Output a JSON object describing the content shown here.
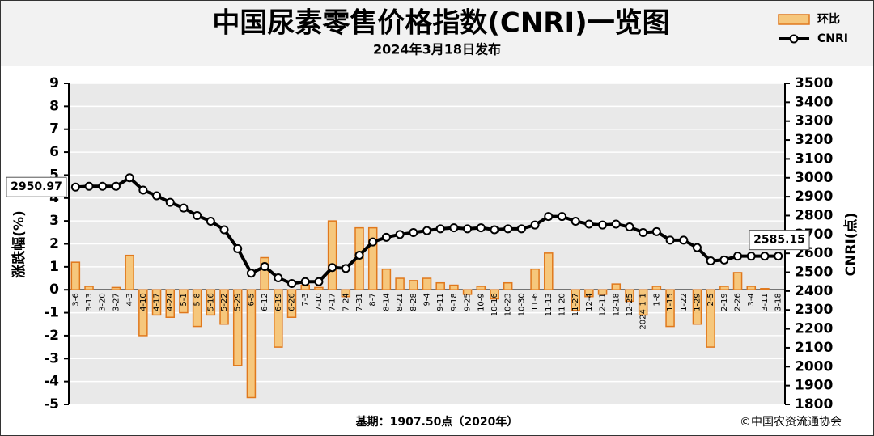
{
  "chart_data": {
    "type": "combo",
    "title": "中国尿素零售价格指数(CNRI)一览图",
    "subtitle": "2024年3月18日发布",
    "y_label": "涨跌幅(%)",
    "y2_label": "CNRI(点)",
    "footnote": "基期：1907.50点（2020年）",
    "source": "©中国农资流通协会",
    "legend_position": "top-right",
    "grid": true,
    "categories": [
      "3-6",
      "3-13",
      "3-20",
      "3-27",
      "4-3",
      "4-10",
      "4-17",
      "4-24",
      "5-1",
      "5-8",
      "5-16",
      "5-22",
      "5-29",
      "6-5",
      "6-12",
      "6-19",
      "6-26",
      "7-3",
      "7-10",
      "7-17",
      "7-24",
      "7-31",
      "8-7",
      "8-14",
      "8-21",
      "8-28",
      "9-4",
      "9-11",
      "9-18",
      "9-25",
      "10-9",
      "10-16",
      "10-23",
      "10-30",
      "11-6",
      "11-13",
      "11-20",
      "11-27",
      "12-4",
      "12-11",
      "12-18",
      "12-25",
      "2024-1-1",
      "1-8",
      "1-15",
      "1-22",
      "1-29",
      "2-5",
      "2-19",
      "2-26",
      "3-4",
      "3-11",
      "3-18"
    ],
    "series": [
      {
        "name": "环比",
        "type": "bar",
        "axis": "y",
        "color": "#f6c77c",
        "edge": "#e0781c",
        "values": [
          1.2,
          0.15,
          0,
          0.1,
          1.5,
          -2.0,
          -1.1,
          -1.2,
          -1.0,
          -1.6,
          -1.1,
          -1.5,
          -3.3,
          -4.7,
          1.4,
          -2.5,
          -1.2,
          0.2,
          0.1,
          3.0,
          -0.3,
          2.7,
          2.7,
          0.9,
          0.5,
          0.4,
          0.5,
          0.3,
          0.2,
          -0.2,
          0.15,
          -0.4,
          0.3,
          0,
          0.9,
          1.6,
          0,
          -0.9,
          -0.3,
          -0.2,
          0.25,
          -0.5,
          -1.1,
          0.15,
          -1.6,
          0,
          -1.5,
          -2.5,
          0.15,
          0.75,
          0.15,
          0.05,
          0
        ]
      },
      {
        "name": "CNRI",
        "type": "line",
        "axis": "y2",
        "color": "#000000",
        "values": [
          2950.97,
          2955,
          2955,
          2955,
          3000,
          2935,
          2905,
          2870,
          2840,
          2800,
          2770,
          2725,
          2625,
          2495,
          2530,
          2470,
          2440,
          2450,
          2450,
          2525,
          2520,
          2590,
          2660,
          2685,
          2700,
          2710,
          2720,
          2730,
          2735,
          2730,
          2735,
          2725,
          2730,
          2730,
          2750,
          2795,
          2795,
          2770,
          2755,
          2750,
          2755,
          2740,
          2710,
          2715,
          2670,
          2670,
          2630,
          2560,
          2565,
          2585,
          2585,
          2585,
          2585.15
        ]
      }
    ],
    "ylim": [
      -5,
      9
    ],
    "yticks": [
      -5,
      -4,
      -3,
      -2,
      -1,
      0,
      1,
      2,
      3,
      4,
      5,
      6,
      7,
      8,
      9
    ],
    "y2lim": [
      1800,
      3500
    ],
    "y2ticks": [
      1800,
      1900,
      2000,
      2100,
      2200,
      2300,
      2400,
      2500,
      2600,
      2700,
      2800,
      2900,
      3000,
      3100,
      3200,
      3300,
      3400,
      3500
    ]
  }
}
